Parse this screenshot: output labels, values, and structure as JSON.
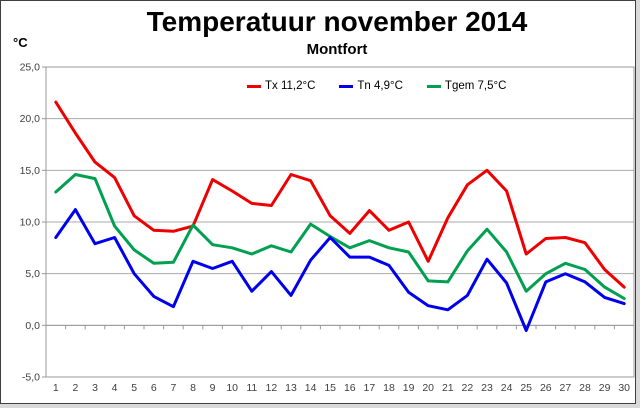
{
  "title": "Temperatuur november 2014",
  "subtitle": "Montfort",
  "y_axis_unit": "°C",
  "legend": {
    "position": "top-center",
    "items": [
      {
        "label": "Tx 11,2°C",
        "color": "#ee0000"
      },
      {
        "label": "Tn 4,9°C",
        "color": "#0000ee"
      },
      {
        "label": "Tgem 7,5°C",
        "color": "#00a050"
      }
    ]
  },
  "chart_data": {
    "type": "line",
    "title": "Temperatuur november 2014",
    "subtitle": "Montfort",
    "xlabel": "",
    "ylabel": "°C",
    "x": [
      1,
      2,
      3,
      4,
      5,
      6,
      7,
      8,
      9,
      10,
      11,
      12,
      13,
      14,
      15,
      16,
      17,
      18,
      19,
      20,
      21,
      22,
      23,
      24,
      25,
      26,
      27,
      28,
      29,
      30
    ],
    "series": [
      {
        "name": "Tx 11,2°C",
        "mean_label": "11,2",
        "color": "#ee0000",
        "values": [
          21.6,
          18.6,
          15.8,
          14.3,
          10.6,
          9.2,
          9.1,
          9.6,
          14.1,
          13.0,
          11.8,
          11.6,
          14.6,
          14.0,
          10.6,
          8.9,
          11.1,
          9.2,
          10.0,
          6.2,
          10.4,
          13.6,
          15.0,
          13.0,
          6.9,
          8.4,
          8.5,
          8.0,
          5.4,
          3.7
        ]
      },
      {
        "name": "Tn 4,9°C",
        "mean_label": "4,9",
        "color": "#0000ee",
        "values": [
          8.5,
          11.2,
          7.9,
          8.5,
          5.0,
          2.8,
          1.8,
          6.2,
          5.5,
          6.2,
          3.3,
          5.2,
          2.9,
          6.3,
          8.5,
          6.6,
          6.6,
          5.8,
          3.2,
          1.9,
          1.5,
          2.9,
          6.4,
          4.1,
          -0.5,
          4.2,
          5.0,
          4.2,
          2.7,
          2.1
        ]
      },
      {
        "name": "Tgem 7,5°C",
        "mean_label": "7,5",
        "color": "#00a050",
        "values": [
          12.9,
          14.6,
          14.2,
          9.6,
          7.3,
          6.0,
          6.1,
          9.7,
          7.8,
          7.5,
          6.9,
          7.7,
          7.1,
          9.8,
          8.6,
          7.5,
          8.2,
          7.5,
          7.1,
          4.3,
          4.2,
          7.2,
          9.3,
          7.1,
          3.3,
          5.0,
          6.0,
          5.4,
          3.7,
          2.6
        ]
      }
    ],
    "ylim": [
      -5,
      25
    ],
    "yticks": {
      "values": [
        25,
        20,
        15,
        10,
        5,
        0,
        -5
      ],
      "labels": [
        "25,0",
        "20,0",
        "15,0",
        "10,0",
        "5,0",
        "0,0",
        "-5,0"
      ]
    },
    "grid": true,
    "category_axis_crosses_at": 0,
    "legend_position": "top-center"
  },
  "colors": {
    "background": "#ffffff",
    "frame_border": "#3f3f3f",
    "gridline": "#aaaaaa",
    "plot_border": "#9a9a9a",
    "tick_text": "#3f3f3f",
    "outer_margin": "#d9d9d9"
  }
}
